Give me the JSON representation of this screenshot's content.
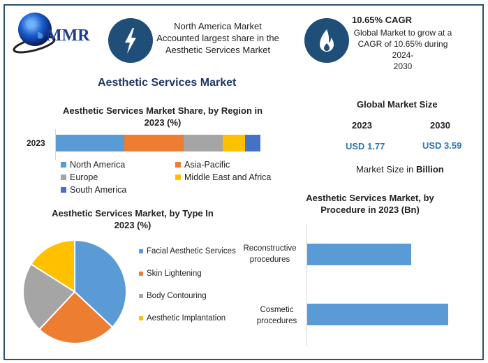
{
  "logo": {
    "text": "MMR"
  },
  "header": {
    "box1": {
      "icon": "lightning-icon",
      "lines": [
        "North America Market",
        "Accounted largest share in the",
        "Aesthetic Services Market"
      ]
    },
    "box2": {
      "icon": "flame-icon",
      "title": "10.65% CAGR",
      "lines": [
        "Global Market to grow at a",
        "CAGR of 10.65% during 2024-",
        "2030"
      ]
    }
  },
  "main_title": "Aesthetic Services Market",
  "market_size": {
    "title": "Global Market Size",
    "year1": "2023",
    "value1": "USD 1.77",
    "year2": "2030",
    "value2": "USD 3.59",
    "unit_prefix": "Market Size in ",
    "unit_bold": "Billion"
  },
  "colors": {
    "blue": "#5b9bd5",
    "orange": "#ed7d31",
    "gray": "#a5a5a5",
    "yellow": "#ffc000",
    "darkblue": "#4472c4",
    "navy": "#1f4e79",
    "title": "#1f3864"
  },
  "chart_data": [
    {
      "type": "bar",
      "orientation": "horizontal",
      "stacked": true,
      "title": "Aesthetic Services Market Share, by Region in 2023 (%)",
      "categories": [
        "2023"
      ],
      "series": [
        {
          "name": "North America",
          "values": [
            33.5
          ],
          "color": "#5b9bd5"
        },
        {
          "name": "Asia-Pacific",
          "values": [
            29
          ],
          "color": "#ed7d31"
        },
        {
          "name": "Europe",
          "values": [
            19
          ],
          "color": "#a5a5a5"
        },
        {
          "name": "Middle East and Africa",
          "values": [
            11
          ],
          "color": "#ffc000"
        },
        {
          "name": "South America",
          "values": [
            7.5
          ],
          "color": "#4472c4"
        }
      ],
      "legend": "bottom"
    },
    {
      "type": "pie",
      "title": "Aesthetic Services Market, by Type In 2023 (%)",
      "labels": [
        "Facial Aesthetic Services",
        "Skin Lightening",
        "Body Contouring",
        "Aesthetic Implantation"
      ],
      "values": [
        37,
        25,
        22,
        16
      ],
      "colors": [
        "#5b9bd5",
        "#ed7d31",
        "#a5a5a5",
        "#ffc000"
      ],
      "legend": "right"
    },
    {
      "type": "bar",
      "orientation": "horizontal",
      "title": "Aesthetic Services Market, by Procedure in 2023 (Bn)",
      "categories": [
        "Reconstructive procedures",
        "Cosmetic procedures"
      ],
      "category_lines": [
        [
          "Reconstructive",
          "procedures"
        ],
        [
          "Cosmetic",
          "procedures"
        ]
      ],
      "values": [
        0.74,
        1.0
      ],
      "value_note": "relative lengths (no axis values shown)",
      "color": "#5b9bd5"
    }
  ]
}
